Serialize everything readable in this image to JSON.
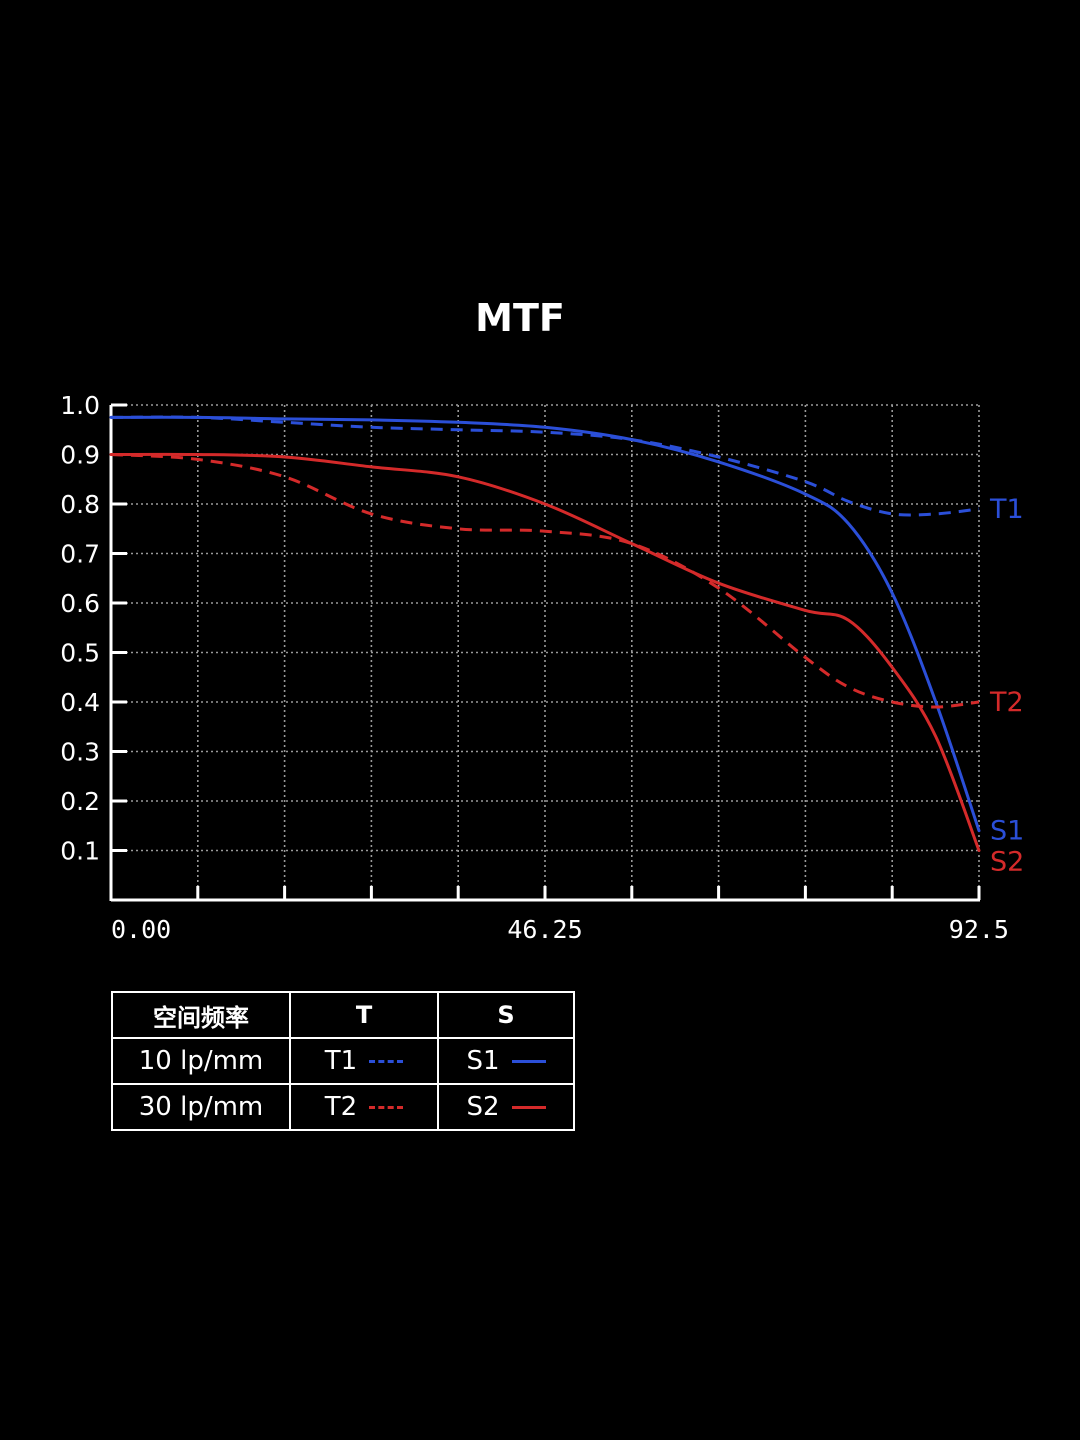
{
  "chart_data": {
    "type": "line",
    "title": "MTF",
    "xlim": [
      0,
      92.5
    ],
    "ylim": [
      0,
      1.0
    ],
    "x_tick_labels": [
      "0.00",
      "46.25",
      "92.5"
    ],
    "x_tick_values": [
      0,
      46.25,
      92.5
    ],
    "y_ticks": [
      "0.1",
      "0.2",
      "0.3",
      "0.4",
      "0.5",
      "0.6",
      "0.7",
      "0.8",
      "0.9",
      "1.0"
    ],
    "grid": true,
    "series": [
      {
        "name": "T1",
        "color": "#2b4fd8",
        "dash": true,
        "x": [
          0,
          9.25,
          18.5,
          27.75,
          37,
          46.25,
          55.5,
          64.75,
          74,
          78.6,
          83.25,
          87.9,
          92.5
        ],
        "y": [
          0.975,
          0.975,
          0.965,
          0.955,
          0.95,
          0.945,
          0.93,
          0.895,
          0.845,
          0.805,
          0.78,
          0.78,
          0.79
        ]
      },
      {
        "name": "S1",
        "color": "#2b4fd8",
        "dash": false,
        "x": [
          0,
          9.25,
          18.5,
          27.75,
          37,
          46.25,
          55.5,
          64.75,
          74,
          78.6,
          83.25,
          87.9,
          92.5
        ],
        "y": [
          0.975,
          0.975,
          0.972,
          0.97,
          0.965,
          0.955,
          0.93,
          0.885,
          0.82,
          0.76,
          0.62,
          0.4,
          0.14
        ]
      },
      {
        "name": "T2",
        "color": "#d42a2a",
        "dash": true,
        "x": [
          0,
          9.25,
          18.5,
          27.75,
          37,
          46.25,
          55.5,
          64.75,
          74,
          78.6,
          83.25,
          87.9,
          92.5
        ],
        "y": [
          0.9,
          0.89,
          0.855,
          0.78,
          0.75,
          0.745,
          0.72,
          0.63,
          0.49,
          0.43,
          0.4,
          0.39,
          0.4
        ]
      },
      {
        "name": "S2",
        "color": "#d42a2a",
        "dash": false,
        "x": [
          0,
          9.25,
          18.5,
          27.75,
          37,
          46.25,
          55.5,
          64.75,
          74,
          78.6,
          83.25,
          87.9,
          92.5
        ],
        "y": [
          0.9,
          0.9,
          0.895,
          0.875,
          0.855,
          0.8,
          0.72,
          0.64,
          0.585,
          0.565,
          0.47,
          0.33,
          0.1
        ]
      }
    ]
  },
  "legend_table": {
    "header": [
      "空间频率",
      "T",
      "S"
    ],
    "rows": [
      {
        "freq": "10 lp/mm",
        "t": "T1",
        "s": "S1"
      },
      {
        "freq": "30 lp/mm",
        "t": "T2",
        "s": "S2"
      }
    ],
    "colors": {
      "blue": "#2b4fd8",
      "red": "#d42a2a"
    }
  }
}
